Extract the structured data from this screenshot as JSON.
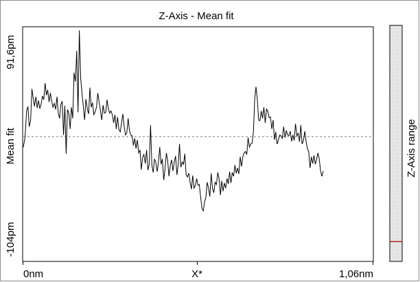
{
  "chart_data": {
    "type": "line",
    "title": "Z-Axis - Mean fit",
    "ylabel": "Mean fit",
    "xlabel": "X*",
    "x_start_label": "0nm",
    "x_end_label": "1,06nm",
    "y_max_label": "91,6pm",
    "y_min_label": "-104pm",
    "range_label": "Z-Axis range",
    "xlim": [
      0,
      1.06
    ],
    "ylim": [
      -104,
      91.6
    ],
    "reference_line_y": 0,
    "series": [
      {
        "values": [
          [
            0.0,
            -8.7
          ],
          [
            0.005,
            -0.8
          ],
          [
            0.01,
            21.4
          ],
          [
            0.014,
            25.2
          ],
          [
            0.018,
            8.3
          ],
          [
            0.022,
            13.4
          ],
          [
            0.026,
            39.8
          ],
          [
            0.03,
            32.0
          ],
          [
            0.034,
            25.2
          ],
          [
            0.038,
            33.3
          ],
          [
            0.042,
            23.9
          ],
          [
            0.046,
            30.1
          ],
          [
            0.05,
            23.3
          ],
          [
            0.054,
            27.0
          ],
          [
            0.058,
            33.9
          ],
          [
            0.062,
            30.8
          ],
          [
            0.066,
            44.6
          ],
          [
            0.07,
            34.6
          ],
          [
            0.074,
            38.9
          ],
          [
            0.078,
            28.9
          ],
          [
            0.082,
            36.4
          ],
          [
            0.086,
            29.5
          ],
          [
            0.09,
            24.5
          ],
          [
            0.094,
            27.7
          ],
          [
            0.098,
            22.7
          ],
          [
            0.102,
            33.3
          ],
          [
            0.106,
            19.6
          ],
          [
            0.11,
            15.2
          ],
          [
            0.114,
            27.0
          ],
          [
            0.118,
            29.5
          ],
          [
            0.122,
            1.4
          ],
          [
            0.126,
            25.8
          ],
          [
            0.13,
            -14.3
          ],
          [
            0.134,
            22.7
          ],
          [
            0.138,
            19.6
          ],
          [
            0.142,
            6.4
          ],
          [
            0.146,
            24.5
          ],
          [
            0.15,
            15.2
          ],
          [
            0.154,
            53.4
          ],
          [
            0.158,
            45.8
          ],
          [
            0.162,
            71.6
          ],
          [
            0.166,
            20.2
          ],
          [
            0.17,
            88.5
          ],
          [
            0.174,
            48.3
          ],
          [
            0.178,
            36.4
          ],
          [
            0.182,
            25.2
          ],
          [
            0.186,
            13.9
          ],
          [
            0.19,
            31.4
          ],
          [
            0.194,
            23.3
          ],
          [
            0.198,
            18.9
          ],
          [
            0.202,
            40.9
          ],
          [
            0.206,
            24.5
          ],
          [
            0.21,
            28.3
          ],
          [
            0.214,
            18.3
          ],
          [
            0.218,
            20.8
          ],
          [
            0.222,
            24.5
          ],
          [
            0.226,
            36.4
          ],
          [
            0.23,
            28.9
          ],
          [
            0.234,
            21.4
          ],
          [
            0.238,
            13.9
          ],
          [
            0.242,
            26.3
          ],
          [
            0.246,
            19.6
          ],
          [
            0.25,
            20.2
          ],
          [
            0.254,
            30.8
          ],
          [
            0.258,
            23.3
          ],
          [
            0.262,
            19.6
          ],
          [
            0.266,
            21.4
          ],
          [
            0.27,
            18.3
          ],
          [
            0.274,
            11.4
          ],
          [
            0.278,
            18.3
          ],
          [
            0.282,
            6.4
          ],
          [
            0.286,
            16.4
          ],
          [
            0.29,
            5.8
          ],
          [
            0.294,
            3.9
          ],
          [
            0.298,
            11.4
          ],
          [
            0.302,
            18.9
          ],
          [
            0.306,
            8.3
          ],
          [
            0.31,
            1.4
          ],
          [
            0.314,
            3.3
          ],
          [
            0.318,
            15.2
          ],
          [
            0.322,
            5.2
          ],
          [
            0.326,
            1.4
          ],
          [
            0.33,
            0.8
          ],
          [
            0.334,
            -7.4
          ],
          [
            0.338,
            -1.4
          ],
          [
            0.342,
            -9.9
          ],
          [
            0.346,
            -2.7
          ],
          [
            0.35,
            -13.6
          ],
          [
            0.354,
            -11.1
          ],
          [
            0.358,
            -27.4
          ],
          [
            0.362,
            -17.4
          ],
          [
            0.366,
            -14.9
          ],
          [
            0.37,
            -22.4
          ],
          [
            0.374,
            -11.1
          ],
          [
            0.378,
            -28.0
          ],
          [
            0.382,
            -23.0
          ],
          [
            0.386,
            9.6
          ],
          [
            0.39,
            -23.7
          ],
          [
            0.394,
            -29.9
          ],
          [
            0.398,
            -18.6
          ],
          [
            0.402,
            -21.1
          ],
          [
            0.406,
            -29.2
          ],
          [
            0.41,
            -21.1
          ],
          [
            0.414,
            -8.7
          ],
          [
            0.418,
            -23.0
          ],
          [
            0.422,
            -18.6
          ],
          [
            0.426,
            -36.2
          ],
          [
            0.43,
            -26.8
          ],
          [
            0.434,
            -13.6
          ],
          [
            0.438,
            -19.9
          ],
          [
            0.442,
            -33.0
          ],
          [
            0.446,
            -23.7
          ],
          [
            0.45,
            -19.3
          ],
          [
            0.454,
            -28.6
          ],
          [
            0.458,
            -21.1
          ],
          [
            0.462,
            -16.1
          ],
          [
            0.466,
            -31.8
          ],
          [
            0.47,
            -23.0
          ],
          [
            0.474,
            -6.1
          ],
          [
            0.478,
            -25.5
          ],
          [
            0.482,
            -21.1
          ],
          [
            0.486,
            -23.0
          ],
          [
            0.49,
            -14.3
          ],
          [
            0.494,
            -31.8
          ],
          [
            0.498,
            -33.6
          ],
          [
            0.502,
            -30.5
          ],
          [
            0.506,
            -38.0
          ],
          [
            0.51,
            -43.7
          ],
          [
            0.514,
            -32.4
          ],
          [
            0.518,
            -43.0
          ],
          [
            0.522,
            -40.5
          ],
          [
            0.526,
            -34.9
          ],
          [
            0.53,
            -40.5
          ],
          [
            0.534,
            -39.9
          ],
          [
            0.538,
            -49.9
          ],
          [
            0.542,
            -59.9
          ],
          [
            0.546,
            -61.8
          ],
          [
            0.55,
            -54.3
          ],
          [
            0.554,
            -50.5
          ],
          [
            0.558,
            -38.0
          ],
          [
            0.562,
            -43.0
          ],
          [
            0.566,
            -49.9
          ],
          [
            0.57,
            -30.5
          ],
          [
            0.574,
            -43.0
          ],
          [
            0.578,
            -46.8
          ],
          [
            0.582,
            -38.0
          ],
          [
            0.586,
            -39.9
          ],
          [
            0.59,
            -29.9
          ],
          [
            0.594,
            -34.9
          ],
          [
            0.598,
            -48.7
          ],
          [
            0.602,
            -36.8
          ],
          [
            0.606,
            -45.5
          ],
          [
            0.61,
            -38.6
          ],
          [
            0.614,
            -43.0
          ],
          [
            0.618,
            -34.9
          ],
          [
            0.622,
            -39.3
          ],
          [
            0.626,
            -29.2
          ],
          [
            0.63,
            -38.6
          ],
          [
            0.634,
            -29.9
          ],
          [
            0.638,
            -33.0
          ],
          [
            0.642,
            -23.7
          ],
          [
            0.646,
            -30.5
          ],
          [
            0.65,
            -26.1
          ],
          [
            0.654,
            -31.1
          ],
          [
            0.658,
            -16.8
          ],
          [
            0.662,
            -24.9
          ],
          [
            0.666,
            -16.8
          ],
          [
            0.67,
            -13.6
          ],
          [
            0.674,
            -12.4
          ],
          [
            0.678,
            -14.9
          ],
          [
            0.682,
            -0.8
          ],
          [
            0.686,
            -8.7
          ],
          [
            0.69,
            -6.1
          ],
          [
            0.694,
            -5.5
          ],
          [
            0.698,
            3.3
          ],
          [
            0.702,
            30.8
          ],
          [
            0.706,
            41.5
          ],
          [
            0.71,
            31.4
          ],
          [
            0.714,
            13.9
          ],
          [
            0.718,
            13.3
          ],
          [
            0.722,
            21.4
          ],
          [
            0.726,
            15.2
          ],
          [
            0.73,
            24.5
          ],
          [
            0.734,
            11.4
          ],
          [
            0.738,
            23.3
          ],
          [
            0.742,
            20.8
          ],
          [
            0.746,
            15.8
          ],
          [
            0.75,
            16.4
          ],
          [
            0.754,
            6.4
          ],
          [
            0.758,
            13.9
          ],
          [
            0.762,
            -2.7
          ],
          [
            0.766,
            3.9
          ],
          [
            0.77,
            -6.1
          ],
          [
            0.774,
            -2.7
          ],
          [
            0.778,
            1.4
          ],
          [
            0.782,
            0.8
          ],
          [
            0.786,
            -1.4
          ],
          [
            0.79,
            8.3
          ],
          [
            0.794,
            -0.8
          ],
          [
            0.798,
            5.2
          ],
          [
            0.802,
            1.4
          ],
          [
            0.806,
            0.8
          ],
          [
            0.81,
            4.5
          ],
          [
            0.814,
            -3.9
          ],
          [
            0.818,
            1.4
          ],
          [
            0.822,
            -3.3
          ],
          [
            0.826,
            10.8
          ],
          [
            0.83,
            0.8
          ],
          [
            0.834,
            2.7
          ],
          [
            0.838,
            -4.2
          ],
          [
            0.842,
            9.6
          ],
          [
            0.846,
            -6.1
          ],
          [
            0.85,
            -3.3
          ],
          [
            0.854,
            4.5
          ],
          [
            0.858,
            -3.9
          ],
          [
            0.862,
            -9.9
          ],
          [
            0.866,
            -12.4
          ],
          [
            0.87,
            -26.1
          ],
          [
            0.874,
            -16.8
          ],
          [
            0.878,
            -22.4
          ],
          [
            0.882,
            -15.5
          ],
          [
            0.886,
            -23.0
          ],
          [
            0.89,
            -18.6
          ],
          [
            0.894,
            -13.6
          ],
          [
            0.898,
            -18.6
          ],
          [
            0.902,
            -28.6
          ],
          [
            0.906,
            -33.0
          ],
          [
            0.91,
            -28.6
          ]
        ]
      }
    ],
    "grid": false,
    "legend": "none",
    "line_color": "#000000",
    "reference_line_color": "#7a7a7a",
    "range_marker_color": "#b02020"
  }
}
